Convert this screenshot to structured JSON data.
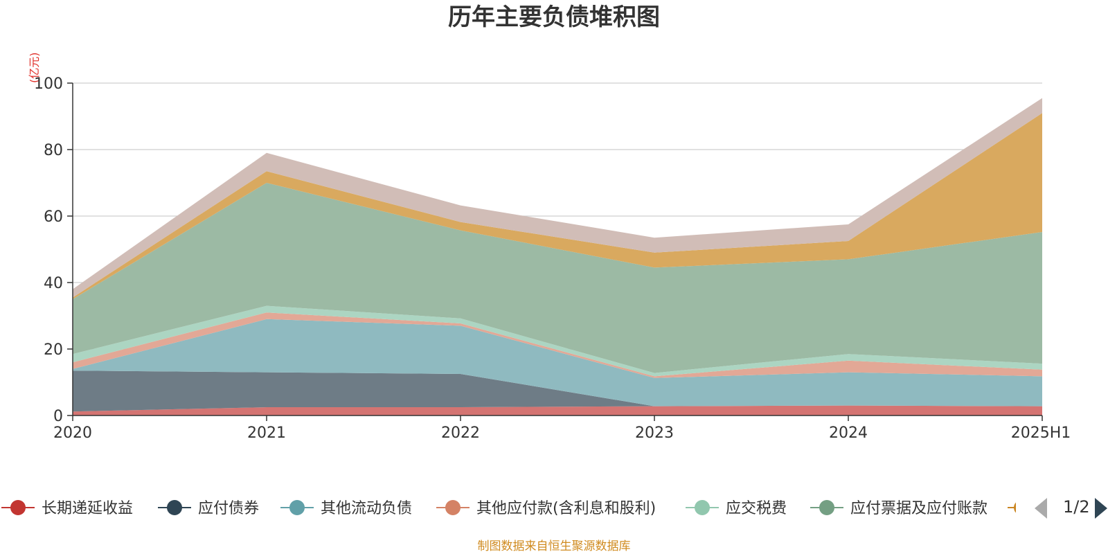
{
  "chart_data": {
    "type": "area",
    "title": "历年主要负债堆积图",
    "ylabel": "(亿元)",
    "stacked": true,
    "ylim": [
      0,
      100
    ],
    "yticks": [
      0,
      20,
      40,
      60,
      80,
      100
    ],
    "grid": true,
    "legend_position": "bottom",
    "categories": [
      "2020",
      "2021",
      "2022",
      "2023",
      "2024",
      "2025H1"
    ],
    "series": [
      {
        "name": "长期递延收益",
        "color": "#c23531",
        "fill": "#d47472",
        "values": [
          1.2,
          2.5,
          2.5,
          2.8,
          3.0,
          2.8
        ]
      },
      {
        "name": "应付债券",
        "color": "#2f4554",
        "fill": "#6e7c86",
        "values": [
          12.3,
          10.5,
          10.0,
          0,
          0,
          0
        ]
      },
      {
        "name": "其他流动负债",
        "color": "#61a0a8",
        "fill": "#8fbac0",
        "values": [
          0.5,
          16.0,
          14.5,
          8.5,
          10.0,
          9.0
        ]
      },
      {
        "name": "其他应付款(含利息和股利)",
        "color": "#d48265",
        "fill": "#e2a896",
        "values": [
          2.0,
          2.0,
          0.7,
          0.5,
          3.5,
          2.0
        ]
      },
      {
        "name": "应交税费",
        "color": "#91c7ae",
        "fill": "#acd5c2",
        "values": [
          2.5,
          2.0,
          1.5,
          1.0,
          2.0,
          1.8
        ]
      },
      {
        "name": "应付票据及应付账款",
        "color": "#749f83",
        "fill": "#9cbaa4",
        "values": [
          16.5,
          37.0,
          26.5,
          31.7,
          28.5,
          39.6
        ]
      },
      {
        "name": "",
        "color": "#ca8622",
        "fill": "#d9a95f",
        "values": [
          0.5,
          3.5,
          2.5,
          4.5,
          5.5,
          35.8
        ]
      },
      {
        "name": "",
        "color": "#bda29a",
        "fill": "#d1bdb7",
        "values": [
          2.5,
          5.5,
          5.0,
          4.5,
          5.0,
          4.5
        ]
      }
    ]
  },
  "legend": {
    "page": "1/2",
    "items": [
      {
        "name": "长期递延收益",
        "color": "#c23531"
      },
      {
        "name": "应付债券",
        "color": "#2f4554"
      },
      {
        "name": "其他流动负债",
        "color": "#61a0a8"
      },
      {
        "name": "其他应付款(含利息和股利)",
        "color": "#d48265"
      },
      {
        "name": "应交税费",
        "color": "#91c7ae"
      },
      {
        "name": "应付票据及应付账款",
        "color": "#749f83"
      }
    ]
  },
  "footer": {
    "source": "制图数据来自恒生聚源数据库"
  }
}
